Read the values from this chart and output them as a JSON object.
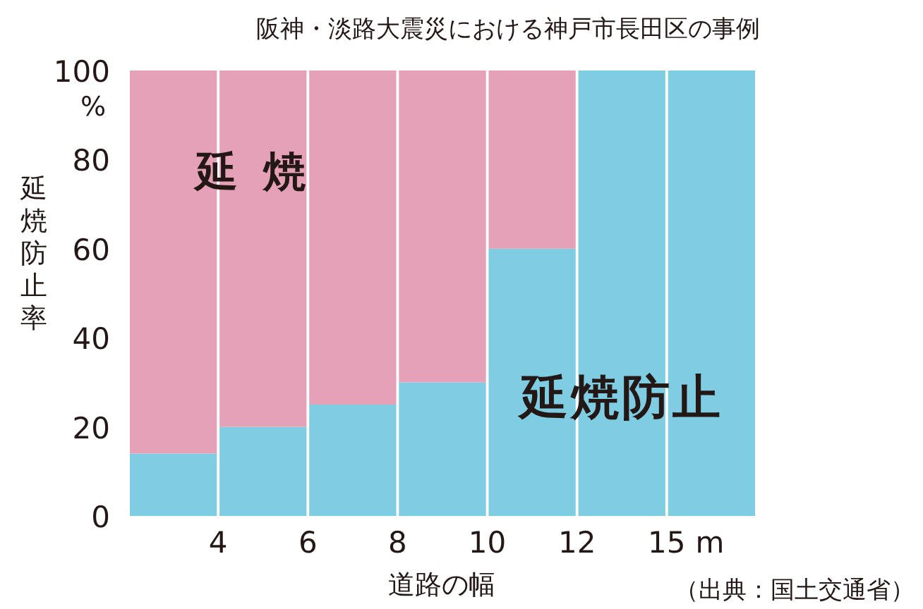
{
  "chart_data": {
    "type": "bar",
    "stacked": true,
    "title": "阪神・淡路大震災における神戸市長田区の事例",
    "xlabel": "道路の幅",
    "ylabel": "延焼防止率",
    "categories": [
      null,
      null,
      null,
      null,
      null,
      null,
      null
    ],
    "ylim": [
      0,
      100
    ],
    "yticks": [
      0,
      20,
      40,
      60,
      80,
      100
    ],
    "series": [
      {
        "name": "延焼防止",
        "color": "#7ecde2",
        "values": [
          14,
          20,
          25,
          30,
          60,
          100,
          100
        ]
      },
      {
        "name": "延焼",
        "color": "#e5a1b7",
        "values": [
          86,
          80,
          75,
          70,
          40,
          0,
          0
        ]
      }
    ],
    "annotations": [
      "4",
      "6",
      "8",
      "10",
      "12",
      "15",
      "m",
      "%",
      "（出典：国土交通省）"
    ],
    "grid": false
  }
}
